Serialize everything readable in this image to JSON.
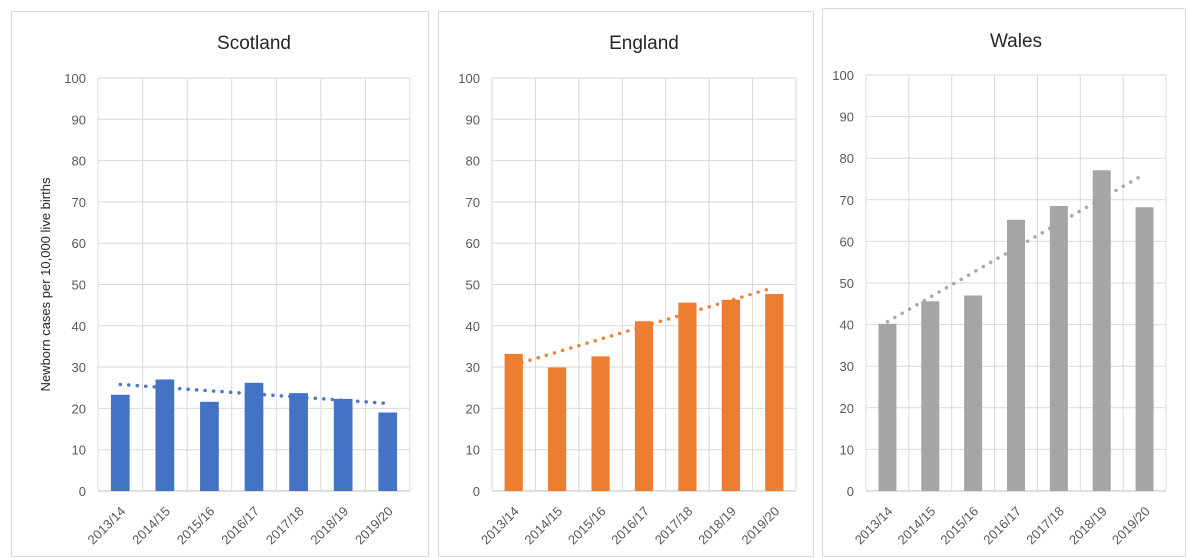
{
  "chart_data": [
    {
      "type": "bar",
      "title": "Scotland",
      "ylabel": "Newborn cases per 10,000 live births",
      "xlabel": "",
      "categories": [
        "2013/14",
        "2014/15",
        "2015/16",
        "2016/17",
        "2017/18",
        "2018/19",
        "2019/20"
      ],
      "values": [
        23.3,
        27.0,
        21.6,
        26.2,
        23.7,
        22.3,
        19.0
      ],
      "trendline": {
        "start": 25.8,
        "end": 21.2,
        "style": "dotted"
      },
      "ylim": [
        0,
        100
      ],
      "yticks": [
        0,
        10,
        20,
        30,
        40,
        50,
        60,
        70,
        80,
        90,
        100
      ],
      "grid": true,
      "color": "#4472C4"
    },
    {
      "type": "bar",
      "title": "England",
      "ylabel": "",
      "xlabel": "",
      "categories": [
        "2013/14",
        "2014/15",
        "2015/16",
        "2016/17",
        "2017/18",
        "2018/19",
        "2019/20"
      ],
      "values": [
        33.2,
        29.9,
        32.6,
        41.1,
        45.6,
        46.3,
        47.7
      ],
      "trendline": {
        "start": 30.5,
        "end": 49.3,
        "style": "dotted"
      },
      "ylim": [
        0,
        100
      ],
      "yticks": [
        0,
        10,
        20,
        30,
        40,
        50,
        60,
        70,
        80,
        90,
        100
      ],
      "grid": true,
      "color": "#ED7D31"
    },
    {
      "type": "bar",
      "title": "Wales",
      "ylabel": "",
      "xlabel": "",
      "categories": [
        "2013/14",
        "2014/15",
        "2015/16",
        "2016/17",
        "2017/18",
        "2018/19",
        "2019/20"
      ],
      "values": [
        40.2,
        45.6,
        47.0,
        65.2,
        68.5,
        77.1,
        68.2
      ],
      "trendline": {
        "start": 40.7,
        "end": 76.2,
        "style": "dotted"
      },
      "ylim": [
        0,
        100
      ],
      "yticks": [
        0,
        10,
        20,
        30,
        40,
        50,
        60,
        70,
        80,
        90,
        100
      ],
      "grid": true,
      "color": "#A5A5A5"
    }
  ]
}
